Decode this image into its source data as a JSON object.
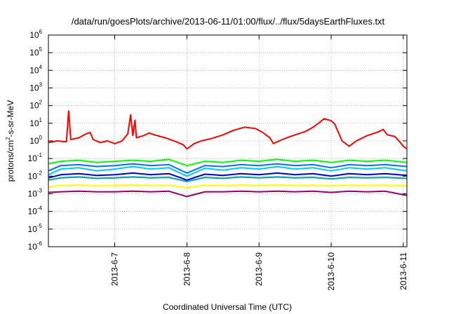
{
  "chart_data": {
    "type": "line",
    "title": "/data/run/goesPlots/archive/2013-06-11/01:00/flux/../flux/5daysEarthFluxes.txt",
    "xlabel": "Coordinated Universal Time (UTC)",
    "ylabel": "protons/cm2-s-sr-MeV",
    "ylabel_parts": {
      "before": "protons/cm",
      "sup": "2",
      "after": "-s-sr-MeV"
    },
    "yscale": "log",
    "ylim": [
      1e-06,
      1000000.0
    ],
    "xlim_days_from_2013_06_06": [
      0.08,
      5.05
    ],
    "y_ticks": [
      {
        "base": "10",
        "exp": "-6",
        "value": 1e-06
      },
      {
        "base": "10",
        "exp": "-5",
        "value": 1e-05
      },
      {
        "base": "10",
        "exp": "-4",
        "value": 0.0001
      },
      {
        "base": "10",
        "exp": "-3",
        "value": 0.001
      },
      {
        "base": "10",
        "exp": "-2",
        "value": 0.01
      },
      {
        "base": "10",
        "exp": "-1",
        "value": 0.1
      },
      {
        "base": "10",
        "exp": "0",
        "value": 1
      },
      {
        "base": "10",
        "exp": "1",
        "value": 10.0
      },
      {
        "base": "10",
        "exp": "2",
        "value": 100.0
      },
      {
        "base": "10",
        "exp": "3",
        "value": 1000.0
      },
      {
        "base": "10",
        "exp": "4",
        "value": 10000.0
      },
      {
        "base": "10",
        "exp": "5",
        "value": 100000.0
      },
      {
        "base": "10",
        "exp": "6",
        "value": 1000000.0
      }
    ],
    "x_ticks": [
      {
        "label": "2013-6-7",
        "day": 1
      },
      {
        "label": "2013-6-8",
        "day": 2
      },
      {
        "label": "2013-6-9",
        "day": 3
      },
      {
        "label": "2013-6-10",
        "day": 4
      },
      {
        "label": "2013-6-11",
        "day": 5
      }
    ],
    "grid": true,
    "series": [
      {
        "color": "#ff0000",
        "points": [
          [
            0.08,
            0.8
          ],
          [
            0.2,
            1.0
          ],
          [
            0.33,
            0.9
          ],
          [
            0.36,
            50
          ],
          [
            0.39,
            1.2
          ],
          [
            0.5,
            1.5
          ],
          [
            0.6,
            2.5
          ],
          [
            0.66,
            3
          ],
          [
            0.7,
            1.2
          ],
          [
            0.8,
            0.8
          ],
          [
            0.9,
            1.0
          ],
          [
            1.0,
            0.7
          ],
          [
            1.1,
            1.0
          ],
          [
            1.18,
            2.5
          ],
          [
            1.22,
            30
          ],
          [
            1.25,
            2
          ],
          [
            1.28,
            15
          ],
          [
            1.3,
            1.5
          ],
          [
            1.4,
            2.0
          ],
          [
            1.48,
            2.8
          ],
          [
            1.55,
            2.2
          ],
          [
            1.7,
            1.5
          ],
          [
            1.85,
            0.9
          ],
          [
            1.95,
            0.6
          ],
          [
            2.0,
            0.35
          ],
          [
            2.1,
            0.7
          ],
          [
            2.2,
            1.0
          ],
          [
            2.35,
            1.4
          ],
          [
            2.5,
            2.2
          ],
          [
            2.65,
            4
          ],
          [
            2.8,
            6
          ],
          [
            2.95,
            5
          ],
          [
            3.05,
            3
          ],
          [
            3.15,
            1.5
          ],
          [
            3.2,
            0.7
          ],
          [
            3.3,
            1.1
          ],
          [
            3.4,
            1.6
          ],
          [
            3.5,
            2.2
          ],
          [
            3.65,
            3.5
          ],
          [
            3.75,
            6
          ],
          [
            3.85,
            12
          ],
          [
            3.9,
            18
          ],
          [
            4.0,
            14
          ],
          [
            4.05,
            9
          ],
          [
            4.1,
            3
          ],
          [
            4.15,
            1
          ],
          [
            4.25,
            0.5
          ],
          [
            4.35,
            1.0
          ],
          [
            4.5,
            2.0
          ],
          [
            4.65,
            3.2
          ],
          [
            4.72,
            4.5
          ],
          [
            4.78,
            2.2
          ],
          [
            4.88,
            1.8
          ],
          [
            4.95,
            0.9
          ],
          [
            5.0,
            0.5
          ],
          [
            5.05,
            0.35
          ]
        ]
      },
      {
        "color": "#00ff00",
        "points": [
          [
            0.08,
            0.05
          ],
          [
            0.25,
            0.07
          ],
          [
            0.5,
            0.08
          ],
          [
            0.75,
            0.06
          ],
          [
            1.0,
            0.07
          ],
          [
            1.25,
            0.08
          ],
          [
            1.5,
            0.07
          ],
          [
            1.75,
            0.09
          ],
          [
            2.0,
            0.04
          ],
          [
            2.25,
            0.07
          ],
          [
            2.5,
            0.06
          ],
          [
            2.75,
            0.08
          ],
          [
            3.0,
            0.07
          ],
          [
            3.25,
            0.09
          ],
          [
            3.5,
            0.07
          ],
          [
            3.75,
            0.08
          ],
          [
            4.0,
            0.06
          ],
          [
            4.25,
            0.08
          ],
          [
            4.5,
            0.07
          ],
          [
            4.75,
            0.08
          ],
          [
            5.05,
            0.06
          ]
        ]
      },
      {
        "color": "#00c8ff",
        "points": [
          [
            0.08,
            0.012
          ],
          [
            0.25,
            0.025
          ],
          [
            0.5,
            0.03
          ],
          [
            0.75,
            0.02
          ],
          [
            1.0,
            0.025
          ],
          [
            1.25,
            0.035
          ],
          [
            1.5,
            0.025
          ],
          [
            1.75,
            0.03
          ],
          [
            2.0,
            0.01
          ],
          [
            2.25,
            0.028
          ],
          [
            2.5,
            0.022
          ],
          [
            2.75,
            0.03
          ],
          [
            3.0,
            0.025
          ],
          [
            3.25,
            0.035
          ],
          [
            3.5,
            0.025
          ],
          [
            3.75,
            0.03
          ],
          [
            4.0,
            0.02
          ],
          [
            4.25,
            0.03
          ],
          [
            4.5,
            0.025
          ],
          [
            4.75,
            0.03
          ],
          [
            5.05,
            0.02
          ]
        ]
      },
      {
        "color": "#0070ff",
        "points": [
          [
            0.08,
            0.02
          ],
          [
            0.25,
            0.04
          ],
          [
            0.5,
            0.045
          ],
          [
            0.75,
            0.035
          ],
          [
            1.0,
            0.04
          ],
          [
            1.25,
            0.05
          ],
          [
            1.5,
            0.04
          ],
          [
            1.75,
            0.045
          ],
          [
            2.0,
            0.015
          ],
          [
            2.25,
            0.04
          ],
          [
            2.5,
            0.035
          ],
          [
            2.75,
            0.045
          ],
          [
            3.0,
            0.04
          ],
          [
            3.25,
            0.05
          ],
          [
            3.5,
            0.04
          ],
          [
            3.75,
            0.045
          ],
          [
            4.0,
            0.03
          ],
          [
            4.25,
            0.045
          ],
          [
            4.5,
            0.04
          ],
          [
            4.75,
            0.045
          ],
          [
            5.05,
            0.035
          ]
        ]
      },
      {
        "color": "#0000cc",
        "points": [
          [
            0.08,
            0.008
          ],
          [
            0.25,
            0.012
          ],
          [
            0.5,
            0.014
          ],
          [
            0.75,
            0.011
          ],
          [
            1.0,
            0.012
          ],
          [
            1.25,
            0.015
          ],
          [
            1.5,
            0.012
          ],
          [
            1.75,
            0.014
          ],
          [
            2.0,
            0.006
          ],
          [
            2.25,
            0.013
          ],
          [
            2.5,
            0.011
          ],
          [
            2.75,
            0.014
          ],
          [
            3.0,
            0.012
          ],
          [
            3.25,
            0.015
          ],
          [
            3.5,
            0.012
          ],
          [
            3.75,
            0.014
          ],
          [
            4.0,
            0.01
          ],
          [
            4.25,
            0.014
          ],
          [
            4.5,
            0.012
          ],
          [
            4.75,
            0.014
          ],
          [
            5.05,
            0.011
          ]
        ]
      },
      {
        "color": "#00a0a0",
        "points": [
          [
            0.08,
            0.006
          ],
          [
            0.25,
            0.008
          ],
          [
            0.5,
            0.009
          ],
          [
            0.75,
            0.0075
          ],
          [
            1.0,
            0.008
          ],
          [
            1.25,
            0.009
          ],
          [
            1.5,
            0.008
          ],
          [
            1.75,
            0.0085
          ],
          [
            2.0,
            0.005
          ],
          [
            2.25,
            0.0085
          ],
          [
            2.5,
            0.0075
          ],
          [
            2.75,
            0.009
          ],
          [
            3.0,
            0.008
          ],
          [
            3.25,
            0.009
          ],
          [
            3.5,
            0.008
          ],
          [
            3.75,
            0.0085
          ],
          [
            4.0,
            0.007
          ],
          [
            4.25,
            0.0085
          ],
          [
            4.5,
            0.008
          ],
          [
            4.75,
            0.0085
          ],
          [
            5.05,
            0.0075
          ]
        ]
      },
      {
        "color": "#ffff00",
        "points": [
          [
            0.08,
            0.0025
          ],
          [
            0.25,
            0.003
          ],
          [
            0.5,
            0.0032
          ],
          [
            0.75,
            0.0028
          ],
          [
            1.0,
            0.003
          ],
          [
            1.25,
            0.0032
          ],
          [
            1.5,
            0.003
          ],
          [
            1.75,
            0.0031
          ],
          [
            2.0,
            0.0022
          ],
          [
            2.25,
            0.0031
          ],
          [
            2.5,
            0.0029
          ],
          [
            2.75,
            0.0032
          ],
          [
            3.0,
            0.003
          ],
          [
            3.25,
            0.0032
          ],
          [
            3.5,
            0.003
          ],
          [
            3.75,
            0.0031
          ],
          [
            4.0,
            0.0028
          ],
          [
            4.25,
            0.0031
          ],
          [
            4.5,
            0.003
          ],
          [
            4.75,
            0.0031
          ],
          [
            5.05,
            0.0028
          ]
        ]
      },
      {
        "color": "#990066",
        "points": [
          [
            0.08,
            0.0012
          ],
          [
            0.25,
            0.0013
          ],
          [
            0.5,
            0.0014
          ],
          [
            0.75,
            0.0013
          ],
          [
            1.0,
            0.0013
          ],
          [
            1.25,
            0.0014
          ],
          [
            1.5,
            0.0013
          ],
          [
            1.75,
            0.0014
          ],
          [
            2.0,
            0.0007
          ],
          [
            2.25,
            0.0013
          ],
          [
            2.5,
            0.0013
          ],
          [
            2.75,
            0.0014
          ],
          [
            3.0,
            0.0013
          ],
          [
            3.25,
            0.0014
          ],
          [
            3.5,
            0.0013
          ],
          [
            3.75,
            0.0014
          ],
          [
            4.0,
            0.0012
          ],
          [
            4.25,
            0.0014
          ],
          [
            4.5,
            0.0013
          ],
          [
            4.75,
            0.0014
          ],
          [
            5.05,
            0.0008
          ]
        ]
      }
    ]
  }
}
